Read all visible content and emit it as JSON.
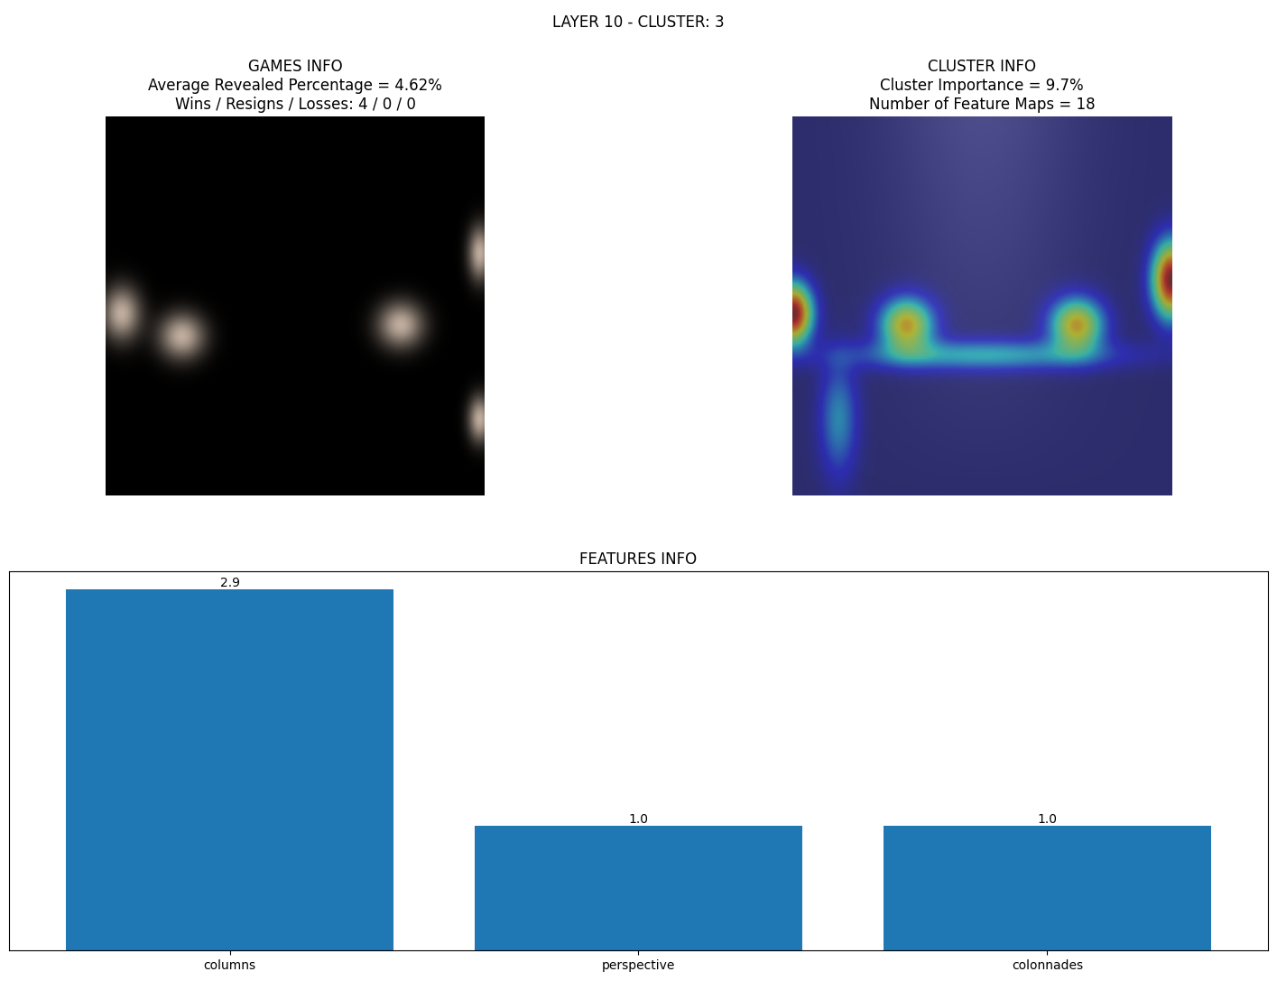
{
  "title": "LAYER 10 - CLUSTER: 3",
  "panels": [
    {
      "title": "GAMES INFO\nAverage Revealed Percentage = 4.62%\nWins / Resigns / Losses: 4 / 0 / 0"
    },
    {
      "title": "CLUSTER INFO\nCluster Importance = 9.7%\nNumber of Feature Maps = 18"
    }
  ],
  "chart_data": {
    "type": "bar",
    "title": "FEATURES INFO",
    "categories": [
      "columns",
      "perspective",
      "colonnades"
    ],
    "values": [
      2.9,
      1.0,
      1.0
    ],
    "color": "#1f77b4",
    "ylim": [
      0,
      3.045
    ],
    "data_labels": true,
    "tick_labels": "x"
  }
}
